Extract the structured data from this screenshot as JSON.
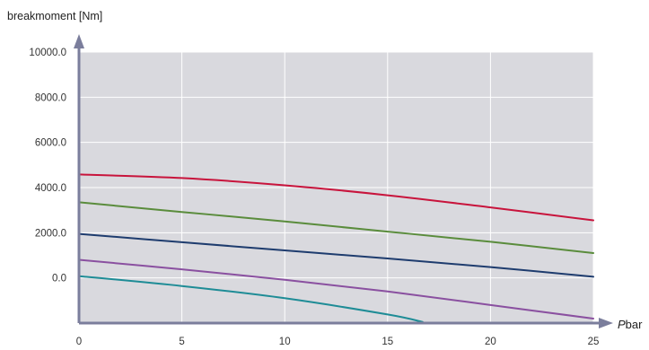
{
  "chart_data": {
    "type": "line",
    "ylabel": "breakmoment [Nm]",
    "xlabel_italic": "P",
    "xlabel_rest": "bar",
    "xlim": [
      0,
      25
    ],
    "ylim": [
      -2000,
      10000
    ],
    "x_ticks": [
      "0",
      "5",
      "10",
      "15",
      "20",
      "25"
    ],
    "y_ticks": [
      "10000.0",
      "8000.0",
      "6000.0",
      "4000.0",
      "2000.0",
      "0.0"
    ],
    "grid": true,
    "background_color": "#d9d9de",
    "series": [
      {
        "color": "#c8143c",
        "x": [
          0,
          5,
          10,
          15,
          20,
          25
        ],
        "y": [
          4580,
          4420,
          4100,
          3660,
          3120,
          2550
        ]
      },
      {
        "color": "#5a8c3c",
        "x": [
          0,
          5,
          10,
          15,
          20,
          25
        ],
        "y": [
          3350,
          2920,
          2500,
          2050,
          1600,
          1100
        ]
      },
      {
        "color": "#1e3c6e",
        "x": [
          0,
          5,
          10,
          15,
          20,
          25
        ],
        "y": [
          1950,
          1580,
          1220,
          860,
          480,
          50
        ]
      },
      {
        "color": "#8a50a0",
        "x": [
          0,
          5,
          10,
          15,
          20,
          25
        ],
        "y": [
          800,
          380,
          -80,
          -600,
          -1200,
          -1800
        ]
      },
      {
        "color": "#1e8c96",
        "x": [
          0,
          5,
          10,
          15,
          16.7
        ],
        "y": [
          80,
          -360,
          -900,
          -1620,
          -1950
        ]
      }
    ]
  }
}
